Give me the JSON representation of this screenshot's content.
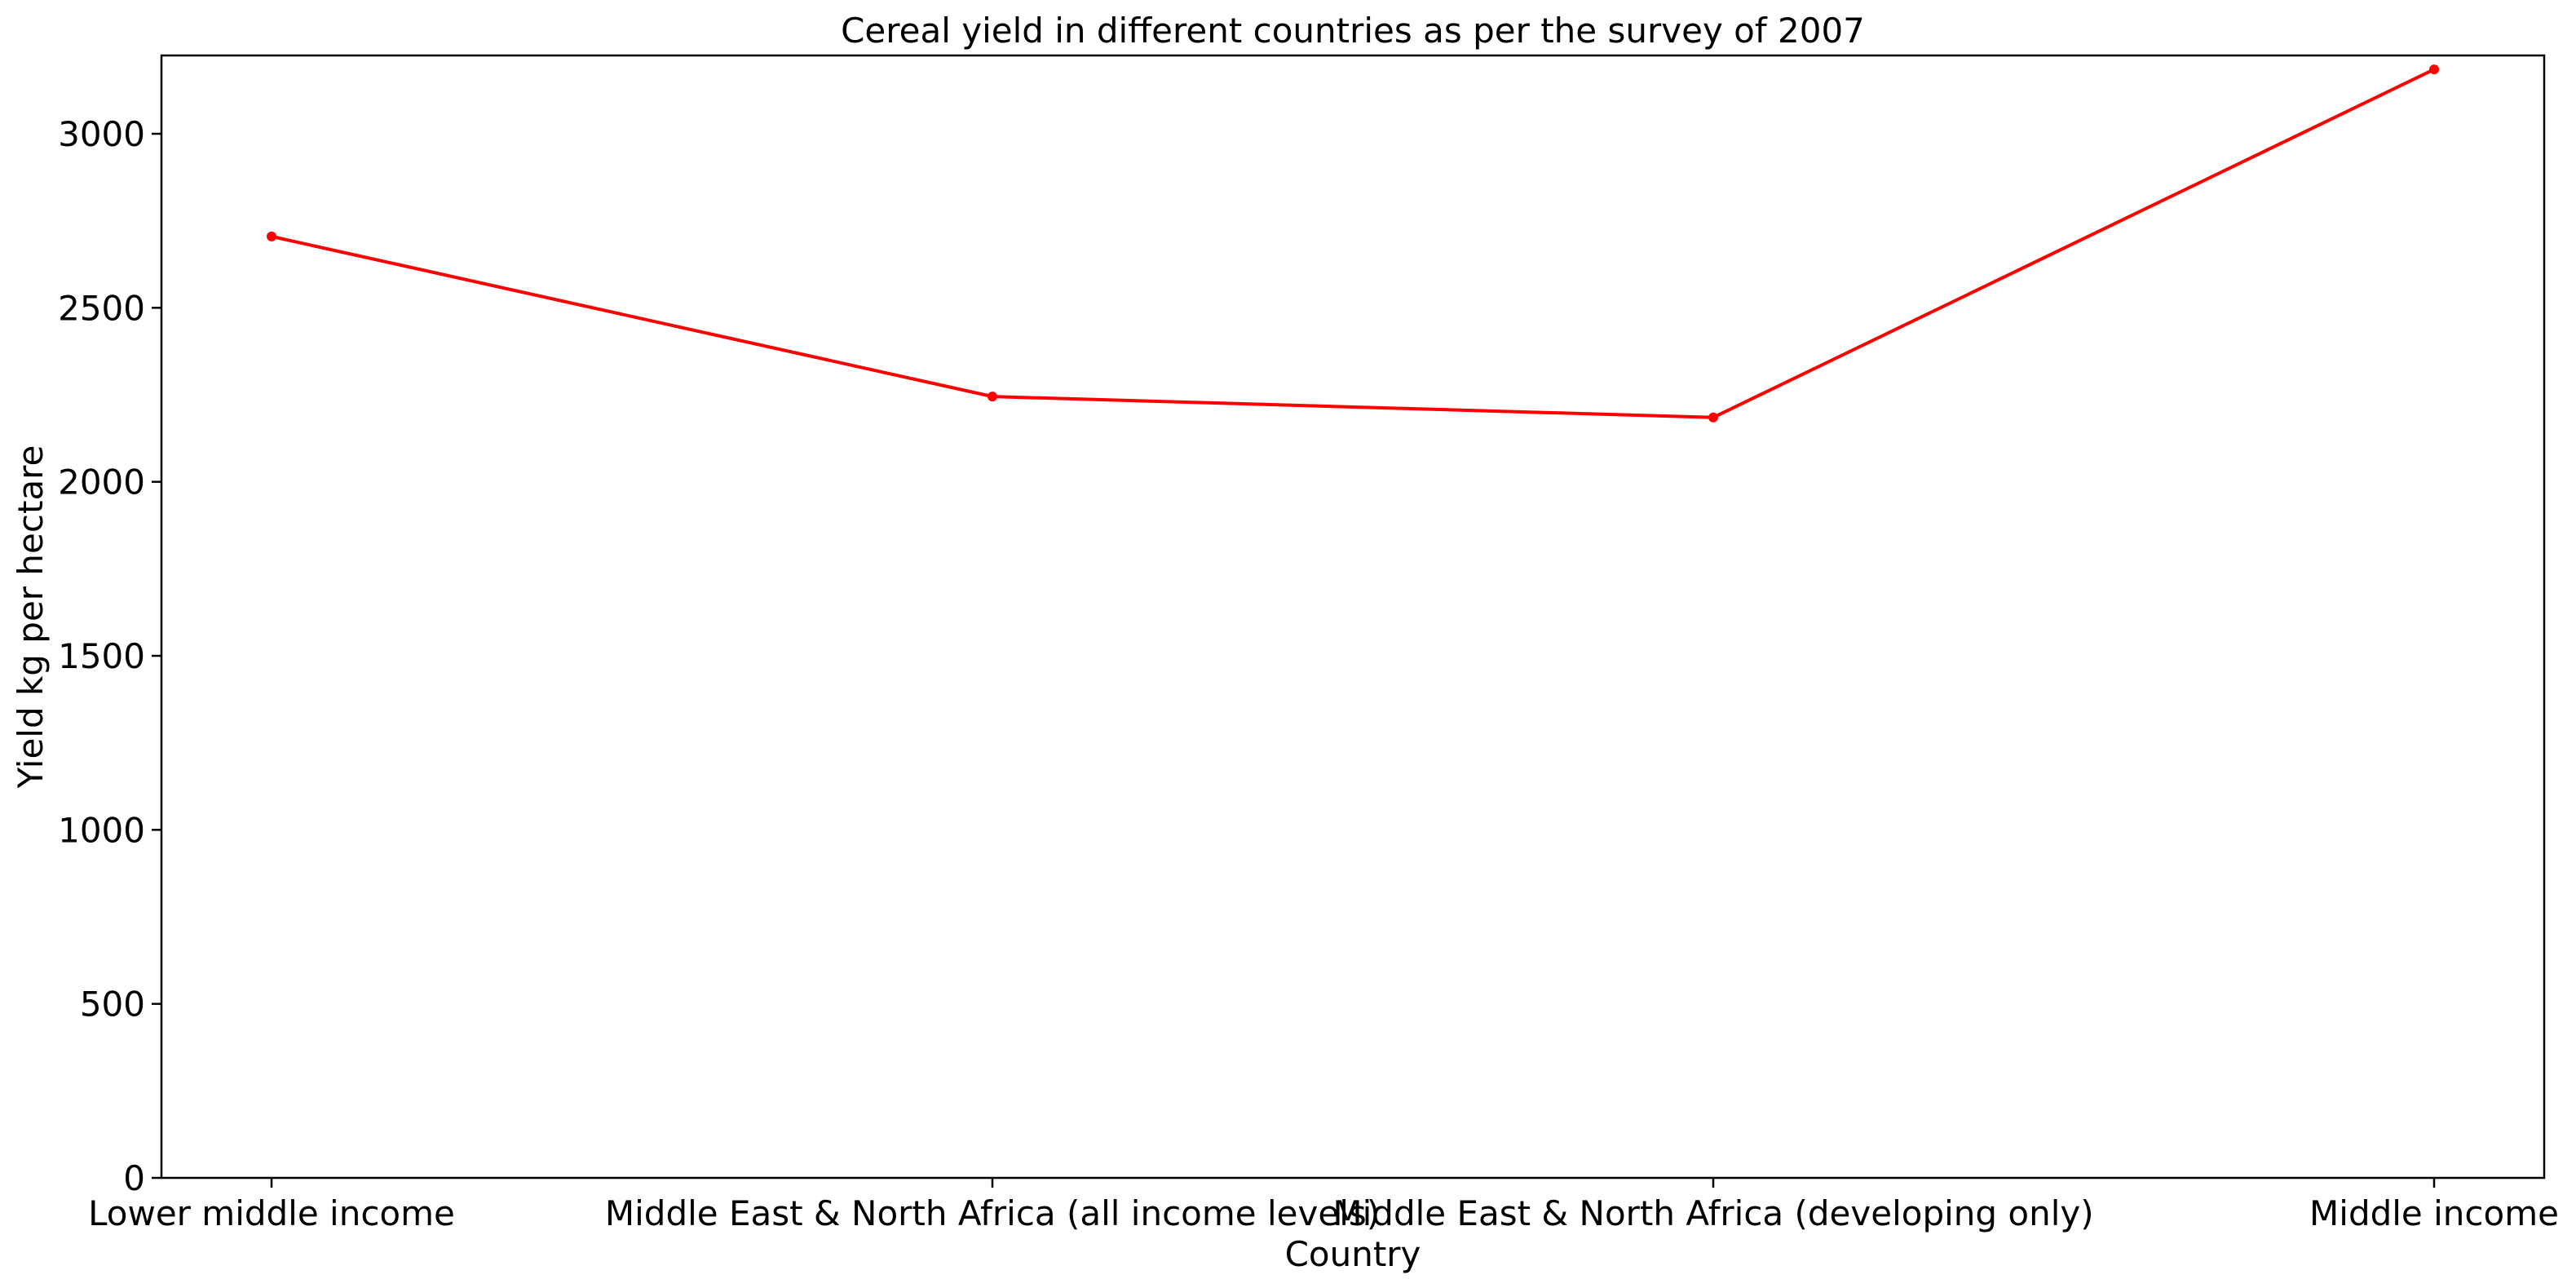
{
  "chart_data": {
    "type": "line",
    "title": "Cereal yield in different countries as per the survey of 2007",
    "xlabel": "Country",
    "ylabel": "Yield kg per hectare",
    "categories": [
      "Lower middle income",
      "Middle East & North Africa (all income levels)",
      "Middle East & North Africa (developing only)",
      "Middle income"
    ],
    "series": [
      {
        "values": [
          2705,
          2245,
          2185,
          3185
        ],
        "color": "#ff0000",
        "marker": "circle"
      }
    ],
    "ylim": [
      0,
      3225
    ],
    "yticks": [
      0,
      500,
      1000,
      1500,
      2000,
      2500,
      3000
    ],
    "grid": false,
    "legend": "none"
  }
}
